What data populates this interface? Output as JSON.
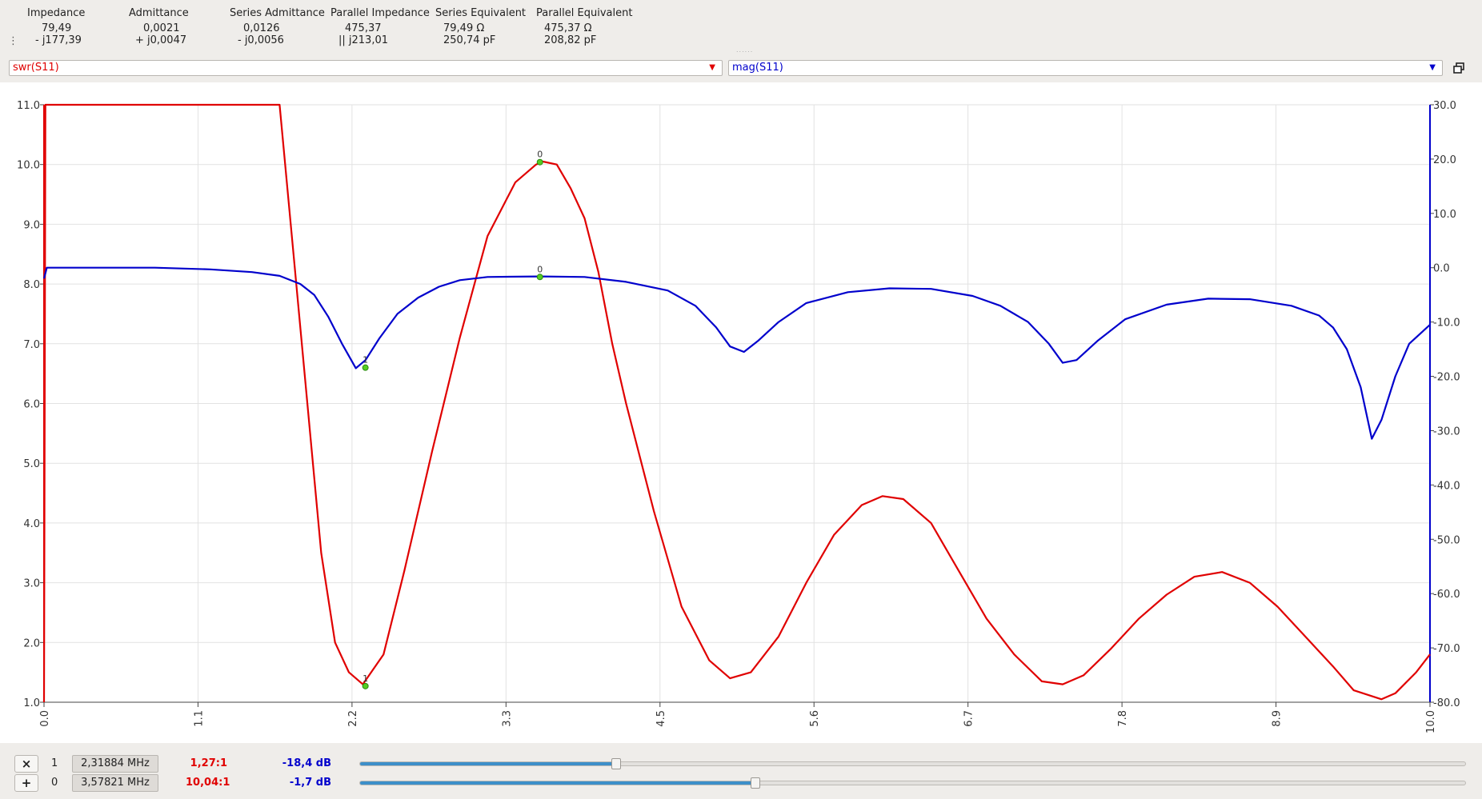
{
  "info": {
    "columns": [
      {
        "header": "Impedance",
        "line1": "79,49",
        "line2": "- j177,39"
      },
      {
        "header": "Admittance",
        "line1": "0,0021",
        "line2": "+ j0,0047"
      },
      {
        "header": "Series Admittance",
        "line1": "0,0126",
        "line2": "- j0,0056"
      },
      {
        "header": "Parallel Impedance",
        "line1": "475,37",
        "line2": "|| j213,01"
      },
      {
        "header": "Series Equivalent",
        "line1": "79,49 Ω",
        "line2": "250,74 pF"
      },
      {
        "header": "Parallel Equivalent",
        "line1": "475,37 Ω",
        "line2": "208,82 pF"
      }
    ],
    "grip_glyph": "⋮",
    "splitter_glyph": "......"
  },
  "traces": {
    "left": {
      "value": "swr(S11)",
      "color": "#e00000"
    },
    "right": {
      "value": "mag(S11)",
      "color": "#0000cc"
    },
    "arrow_glyph": "▼"
  },
  "chart_data": {
    "type": "line",
    "x_ticks": [
      "0.0",
      "1.1",
      "2.2",
      "3.3",
      "4.5",
      "5.6",
      "6.7",
      "7.8",
      "8.9",
      "10.0"
    ],
    "y_left_ticks": [
      "11.0",
      "10.0",
      "9.0",
      "8.0",
      "7.0",
      "6.0",
      "5.0",
      "4.0",
      "3.0",
      "2.0",
      "1.0"
    ],
    "y_right_ticks": [
      "30.0",
      "20.0",
      "10.0",
      "0.0",
      "-10.0",
      "-20.0",
      "-30.0",
      "-40.0",
      "-50.0",
      "-60.0",
      "-70.0",
      "-80.0"
    ],
    "xlim": [
      0,
      10
    ],
    "ylim_left": [
      1,
      11
    ],
    "ylim_right": [
      -80,
      30
    ],
    "grid": true,
    "series": [
      {
        "axis": "left",
        "color": "#e00000",
        "points": [
          [
            0,
            1
          ],
          [
            0.01,
            11
          ],
          [
            1.7,
            11
          ],
          [
            1.8,
            8.5
          ],
          [
            1.9,
            6
          ],
          [
            2,
            3.5
          ],
          [
            2.1,
            2
          ],
          [
            2.2,
            1.5
          ],
          [
            2.3,
            1.3
          ],
          [
            2.45,
            1.8
          ],
          [
            2.6,
            3.2
          ],
          [
            2.8,
            5.2
          ],
          [
            3,
            7.1
          ],
          [
            3.2,
            8.8
          ],
          [
            3.4,
            9.7
          ],
          [
            3.55,
            10
          ],
          [
            3.6,
            10.05
          ],
          [
            3.7,
            10
          ],
          [
            3.8,
            9.6
          ],
          [
            3.9,
            9.1
          ],
          [
            4,
            8.2
          ],
          [
            4.1,
            7
          ],
          [
            4.2,
            6
          ],
          [
            4.4,
            4.2
          ],
          [
            4.6,
            2.6
          ],
          [
            4.8,
            1.7
          ],
          [
            4.95,
            1.4
          ],
          [
            5.1,
            1.5
          ],
          [
            5.3,
            2.1
          ],
          [
            5.5,
            3
          ],
          [
            5.7,
            3.8
          ],
          [
            5.9,
            4.3
          ],
          [
            6.05,
            4.45
          ],
          [
            6.2,
            4.4
          ],
          [
            6.4,
            4
          ],
          [
            6.6,
            3.2
          ],
          [
            6.8,
            2.4
          ],
          [
            7,
            1.8
          ],
          [
            7.2,
            1.35
          ],
          [
            7.35,
            1.3
          ],
          [
            7.5,
            1.45
          ],
          [
            7.7,
            1.9
          ],
          [
            7.9,
            2.4
          ],
          [
            8.1,
            2.8
          ],
          [
            8.3,
            3.1
          ],
          [
            8.5,
            3.18
          ],
          [
            8.7,
            3
          ],
          [
            8.9,
            2.6
          ],
          [
            9.1,
            2.1
          ],
          [
            9.3,
            1.6
          ],
          [
            9.45,
            1.2
          ],
          [
            9.65,
            1.05
          ],
          [
            9.75,
            1.15
          ],
          [
            9.9,
            1.5
          ],
          [
            10,
            1.8
          ]
        ]
      },
      {
        "axis": "right",
        "color": "#0000cc",
        "points": [
          [
            0,
            -2
          ],
          [
            0.02,
            0
          ],
          [
            0.3,
            0
          ],
          [
            0.8,
            0
          ],
          [
            1.2,
            -0.3
          ],
          [
            1.5,
            -0.8
          ],
          [
            1.7,
            -1.5
          ],
          [
            1.85,
            -3
          ],
          [
            1.95,
            -5
          ],
          [
            2.05,
            -9
          ],
          [
            2.15,
            -14
          ],
          [
            2.25,
            -18.5
          ],
          [
            2.32,
            -17
          ],
          [
            2.42,
            -13
          ],
          [
            2.55,
            -8.5
          ],
          [
            2.7,
            -5.5
          ],
          [
            2.85,
            -3.5
          ],
          [
            3,
            -2.3
          ],
          [
            3.2,
            -1.7
          ],
          [
            3.58,
            -1.6
          ],
          [
            3.9,
            -1.7
          ],
          [
            4.2,
            -2.6
          ],
          [
            4.5,
            -4.2
          ],
          [
            4.7,
            -7
          ],
          [
            4.85,
            -11
          ],
          [
            4.95,
            -14.5
          ],
          [
            5.05,
            -15.5
          ],
          [
            5.15,
            -13.5
          ],
          [
            5.3,
            -10
          ],
          [
            5.5,
            -6.5
          ],
          [
            5.8,
            -4.5
          ],
          [
            6.1,
            -3.8
          ],
          [
            6.4,
            -3.9
          ],
          [
            6.7,
            -5.2
          ],
          [
            6.9,
            -7
          ],
          [
            7.1,
            -10
          ],
          [
            7.25,
            -14
          ],
          [
            7.35,
            -17.5
          ],
          [
            7.45,
            -17
          ],
          [
            7.6,
            -13.5
          ],
          [
            7.8,
            -9.5
          ],
          [
            8.1,
            -6.8
          ],
          [
            8.4,
            -5.7
          ],
          [
            8.7,
            -5.8
          ],
          [
            9,
            -7
          ],
          [
            9.2,
            -8.8
          ],
          [
            9.3,
            -11
          ],
          [
            9.4,
            -15
          ],
          [
            9.5,
            -22
          ],
          [
            9.58,
            -31.5
          ],
          [
            9.65,
            -28
          ],
          [
            9.75,
            -20
          ],
          [
            9.85,
            -14
          ],
          [
            10,
            -10.5
          ]
        ]
      }
    ],
    "markers": [
      {
        "label": "0",
        "x": 3.578,
        "swr": 10.04,
        "mag": -1.7
      },
      {
        "label": "1",
        "x": 2.319,
        "swr": 1.27,
        "mag": -18.4
      }
    ]
  },
  "markers": [
    {
      "button": "×",
      "id": "1",
      "freq": "2,31884 MHz",
      "swr": "1,27:1",
      "mag": "-18,4 dB",
      "slider_percent": 23.2
    },
    {
      "button": "+",
      "id": "0",
      "freq": "3,57821 MHz",
      "swr": "10,04:1",
      "mag": "-1,7 dB",
      "slider_percent": 35.8
    }
  ]
}
